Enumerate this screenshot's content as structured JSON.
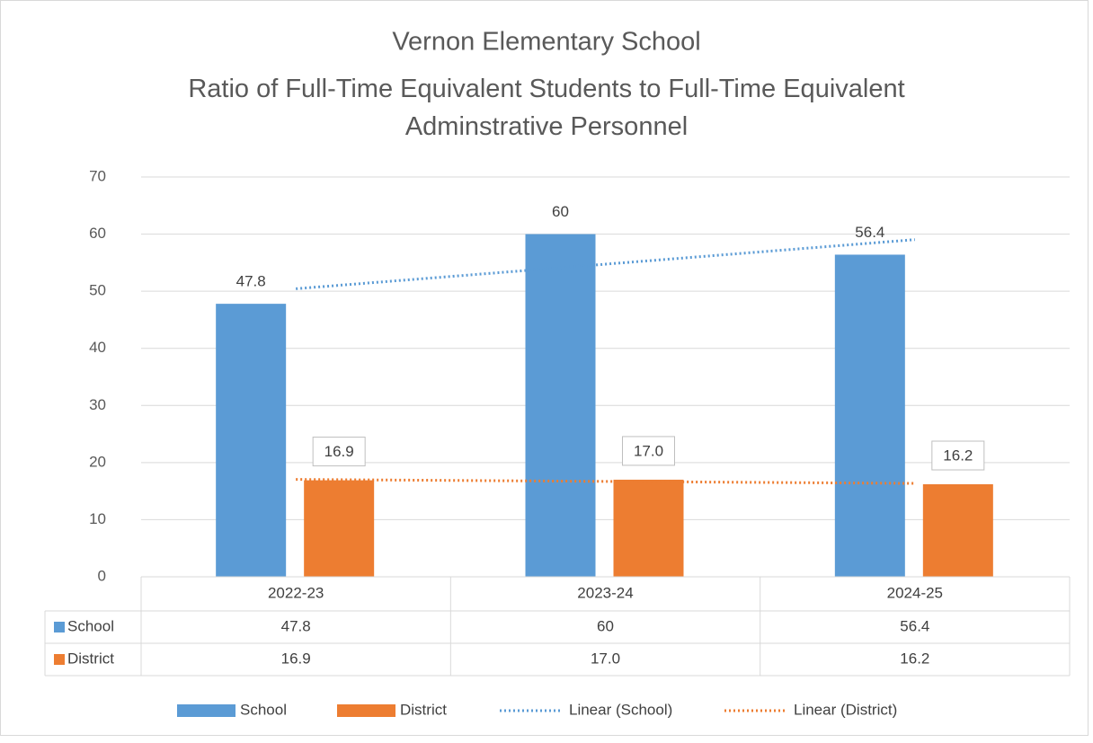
{
  "chart_data": {
    "type": "bar",
    "title": "Vernon Elementary School",
    "subtitle": "Ratio of Full-Time Equivalent Students to Full-Time Equivalent Adminstrative Personnel",
    "categories": [
      "2022-23",
      "2023-24",
      "2024-25"
    ],
    "series": [
      {
        "name": "School",
        "color": "#5b9bd5",
        "values": [
          47.8,
          60,
          56.4
        ],
        "trendline": {
          "type": "linear",
          "name": "Linear (School)"
        }
      },
      {
        "name": "District",
        "color": "#ed7d31",
        "values": [
          16.9,
          17,
          16.2
        ],
        "value_labels": [
          "16.9",
          "17.0",
          "16.2"
        ],
        "trendline": {
          "type": "linear",
          "name": "Linear (District)"
        }
      }
    ],
    "ylim": [
      0,
      70
    ],
    "yticks": [
      0,
      10,
      20,
      30,
      40,
      50,
      60,
      70
    ],
    "grid": true,
    "data_table": true,
    "legend": "bottom"
  }
}
